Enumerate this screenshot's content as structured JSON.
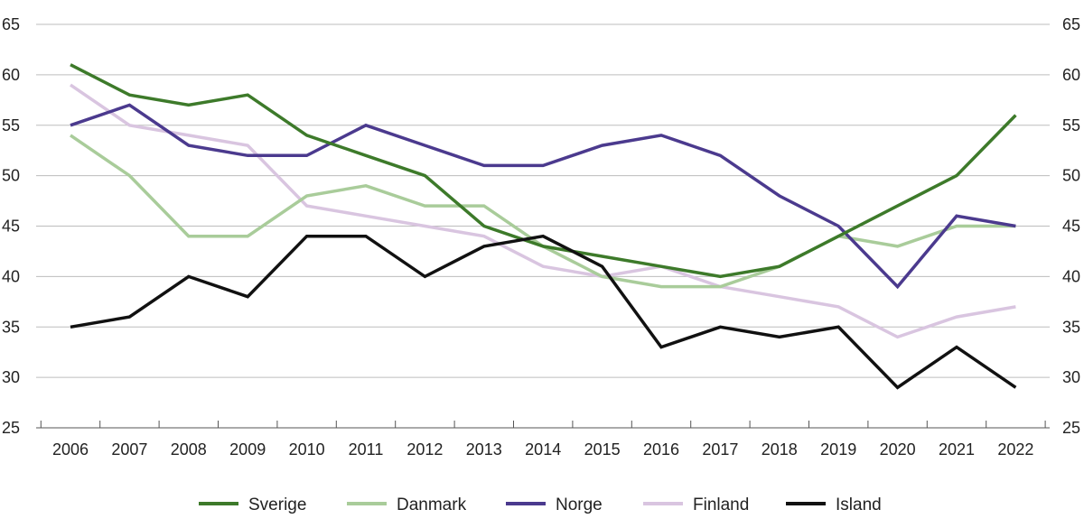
{
  "chart_data": {
    "type": "line",
    "title": "",
    "xlabel": "",
    "ylabel": "",
    "ylim": [
      25,
      65
    ],
    "yticks": [
      25,
      30,
      35,
      40,
      45,
      50,
      55,
      60,
      65
    ],
    "grid": true,
    "legend_position": "bottom",
    "x": [
      "2006",
      "2007",
      "2008",
      "2009",
      "2010",
      "2011",
      "2012",
      "2013",
      "2014",
      "2015",
      "2016",
      "2017",
      "2018",
      "2019",
      "2020",
      "2021",
      "2022"
    ],
    "series": [
      {
        "name": "Sverige",
        "color": "#3d7a2a",
        "values": [
          61,
          58,
          57,
          58,
          54,
          52,
          50,
          45,
          43,
          42,
          41,
          40,
          41,
          44,
          47,
          50,
          56
        ]
      },
      {
        "name": "Danmark",
        "color": "#a9cc9a",
        "values": [
          54,
          50,
          44,
          44,
          48,
          49,
          47,
          47,
          43,
          40,
          39,
          39,
          41,
          44,
          43,
          45,
          45
        ]
      },
      {
        "name": "Norge",
        "color": "#4b3a8e",
        "values": [
          55,
          57,
          53,
          52,
          52,
          55,
          53,
          51,
          51,
          53,
          54,
          52,
          48,
          45,
          39,
          46,
          45
        ]
      },
      {
        "name": "Finland",
        "color": "#d9c5e0",
        "values": [
          59,
          55,
          54,
          53,
          47,
          46,
          45,
          44,
          41,
          40,
          41,
          39,
          38,
          37,
          34,
          36,
          37
        ]
      },
      {
        "name": "Island",
        "color": "#111111",
        "values": [
          35,
          36,
          40,
          38,
          44,
          44,
          40,
          43,
          44,
          41,
          33,
          35,
          34,
          35,
          29,
          33,
          29
        ]
      }
    ]
  }
}
